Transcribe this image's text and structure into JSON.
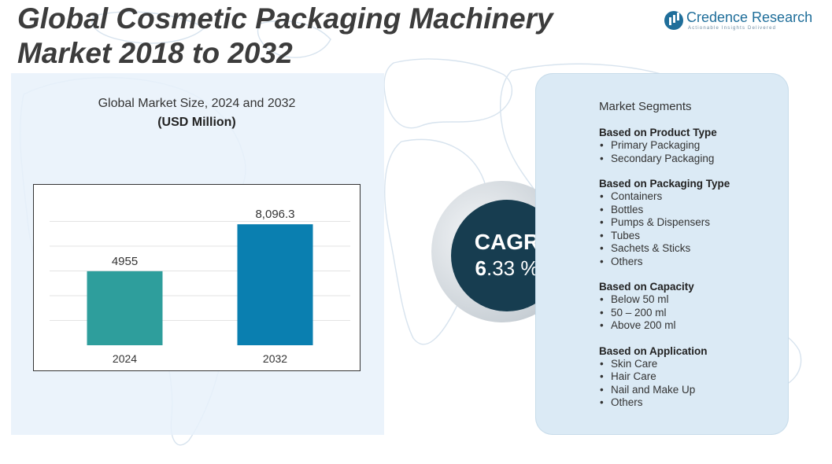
{
  "title": "Global Cosmetic Packaging Machinery Market 2018 to 2032",
  "logo": {
    "name": "Credence Research",
    "tagline": "Actionable Insights Delivered"
  },
  "chart_data": {
    "type": "bar",
    "title": "Global Market Size, 2024 and 2032",
    "subtitle": "(USD Million)",
    "categories": [
      "2024",
      "2032"
    ],
    "values": [
      4955,
      8096.3
    ],
    "value_labels": [
      "4955",
      "8,096.3"
    ],
    "colors": [
      "#2e9e9c",
      "#0a7fb0"
    ],
    "ylim": [
      0,
      10000
    ],
    "grid": true,
    "xlabel": "",
    "ylabel": ""
  },
  "cagr": {
    "label": "CAGR",
    "value_int": "6",
    "value_rest": ".33 %"
  },
  "segments": {
    "title": "Market Segments",
    "groups": [
      {
        "heading": "Based on Product Type",
        "items": [
          "Primary Packaging",
          "Secondary Packaging"
        ]
      },
      {
        "heading": "Based on Packaging Type",
        "items": [
          "Containers",
          "Bottles",
          "Pumps & Dispensers",
          "Tubes",
          "Sachets & Sticks",
          "Others"
        ]
      },
      {
        "heading": "Based on Capacity",
        "items": [
          "Below 50 ml",
          "50 – 200 ml",
          "Above 200 ml"
        ]
      },
      {
        "heading": "Based on Application",
        "items": [
          "Skin Care",
          "Hair Care",
          "Nail and Make Up",
          "Others"
        ]
      }
    ]
  }
}
